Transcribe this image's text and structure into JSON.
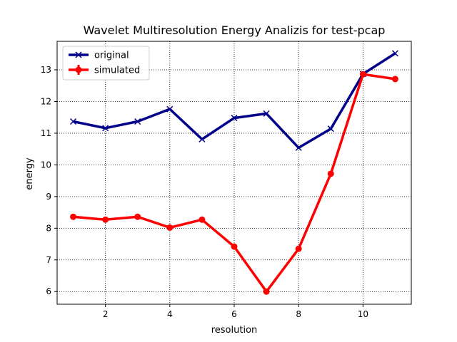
{
  "chart_data": {
    "type": "line",
    "title": "Wavelet Multiresolution Energy Analizis for test-pcap",
    "xlabel": "resolution",
    "ylabel": "energy",
    "x": [
      1,
      2,
      3,
      4,
      5,
      6,
      7,
      8,
      9,
      10,
      11
    ],
    "xlim": [
      0.5,
      11.5
    ],
    "ylim": [
      5.6,
      13.9
    ],
    "xticks": [
      2,
      4,
      6,
      8,
      10
    ],
    "yticks": [
      6,
      7,
      8,
      9,
      10,
      11,
      12,
      13
    ],
    "grid": true,
    "grid_style": "dotted",
    "legend_position": "top-left",
    "series": [
      {
        "name": "original",
        "color": "#00008b",
        "marker": "x",
        "values": [
          11.37,
          11.16,
          11.37,
          11.76,
          10.81,
          11.48,
          11.62,
          10.54,
          11.14,
          12.87,
          13.52
        ]
      },
      {
        "name": "simulated",
        "color": "#ff0000",
        "marker": "o",
        "values": [
          8.36,
          8.27,
          8.36,
          8.02,
          8.27,
          7.42,
          6.0,
          7.35,
          9.72,
          12.86,
          12.71
        ]
      }
    ]
  }
}
